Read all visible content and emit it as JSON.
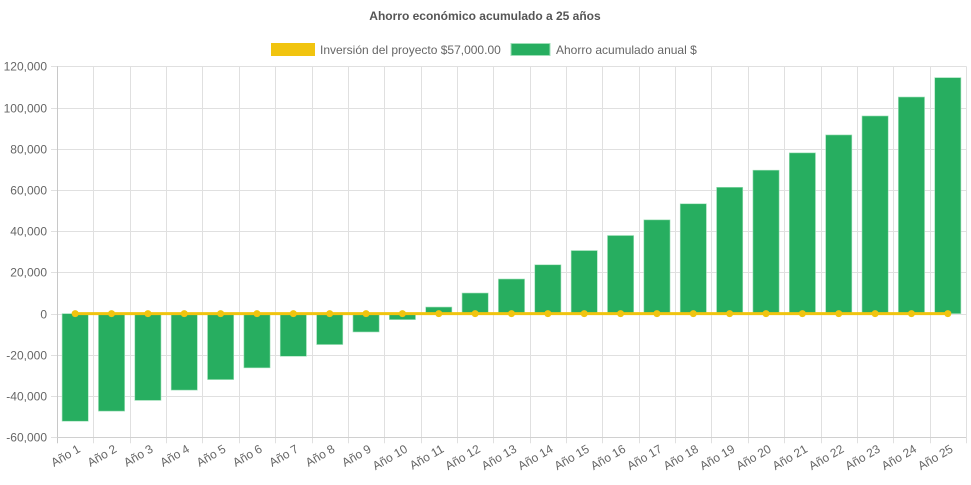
{
  "chart_data": {
    "type": "bar",
    "title": "Ahorro económico acumulado a 25 años",
    "xlabel": "",
    "ylabel": "",
    "ylim": [
      -60000,
      120000
    ],
    "ytick_step": 20000,
    "yticks": [
      "120,000",
      "100,000",
      "80,000",
      "60,000",
      "40,000",
      "20,000",
      "0",
      "-20,000",
      "-40,000",
      "-60,000"
    ],
    "grid": true,
    "legend_position": "top-center",
    "categories": [
      "Año 1",
      "Año 2",
      "Año 3",
      "Año 4",
      "Año 5",
      "Año 6",
      "Año 7",
      "Año 8",
      "Año 9",
      "Año 10",
      "Año 11",
      "Año 12",
      "Año 13",
      "Año 14",
      "Año 15",
      "Año 16",
      "Año 17",
      "Año 18",
      "Año 19",
      "Año 20",
      "Año 21",
      "Año 22",
      "Año 23",
      "Año 24",
      "Año 25"
    ],
    "series": [
      {
        "name": "Inversión del proyecto $57,000.00",
        "type": "line",
        "color": "#f1c40f",
        "values": [
          0,
          0,
          0,
          0,
          0,
          0,
          0,
          0,
          0,
          0,
          0,
          0,
          0,
          0,
          0,
          0,
          0,
          0,
          0,
          0,
          0,
          0,
          0,
          0,
          0
        ]
      },
      {
        "name": "Ahorro acumulado anual $",
        "type": "bar",
        "color": "#27ae60",
        "values": [
          -52200,
          -47300,
          -42100,
          -37100,
          -32000,
          -26300,
          -20700,
          -15000,
          -8900,
          -2900,
          3200,
          10000,
          16800,
          23700,
          30600,
          37900,
          45500,
          53300,
          61300,
          69600,
          78000,
          86700,
          95900,
          105100,
          114500
        ]
      }
    ]
  }
}
